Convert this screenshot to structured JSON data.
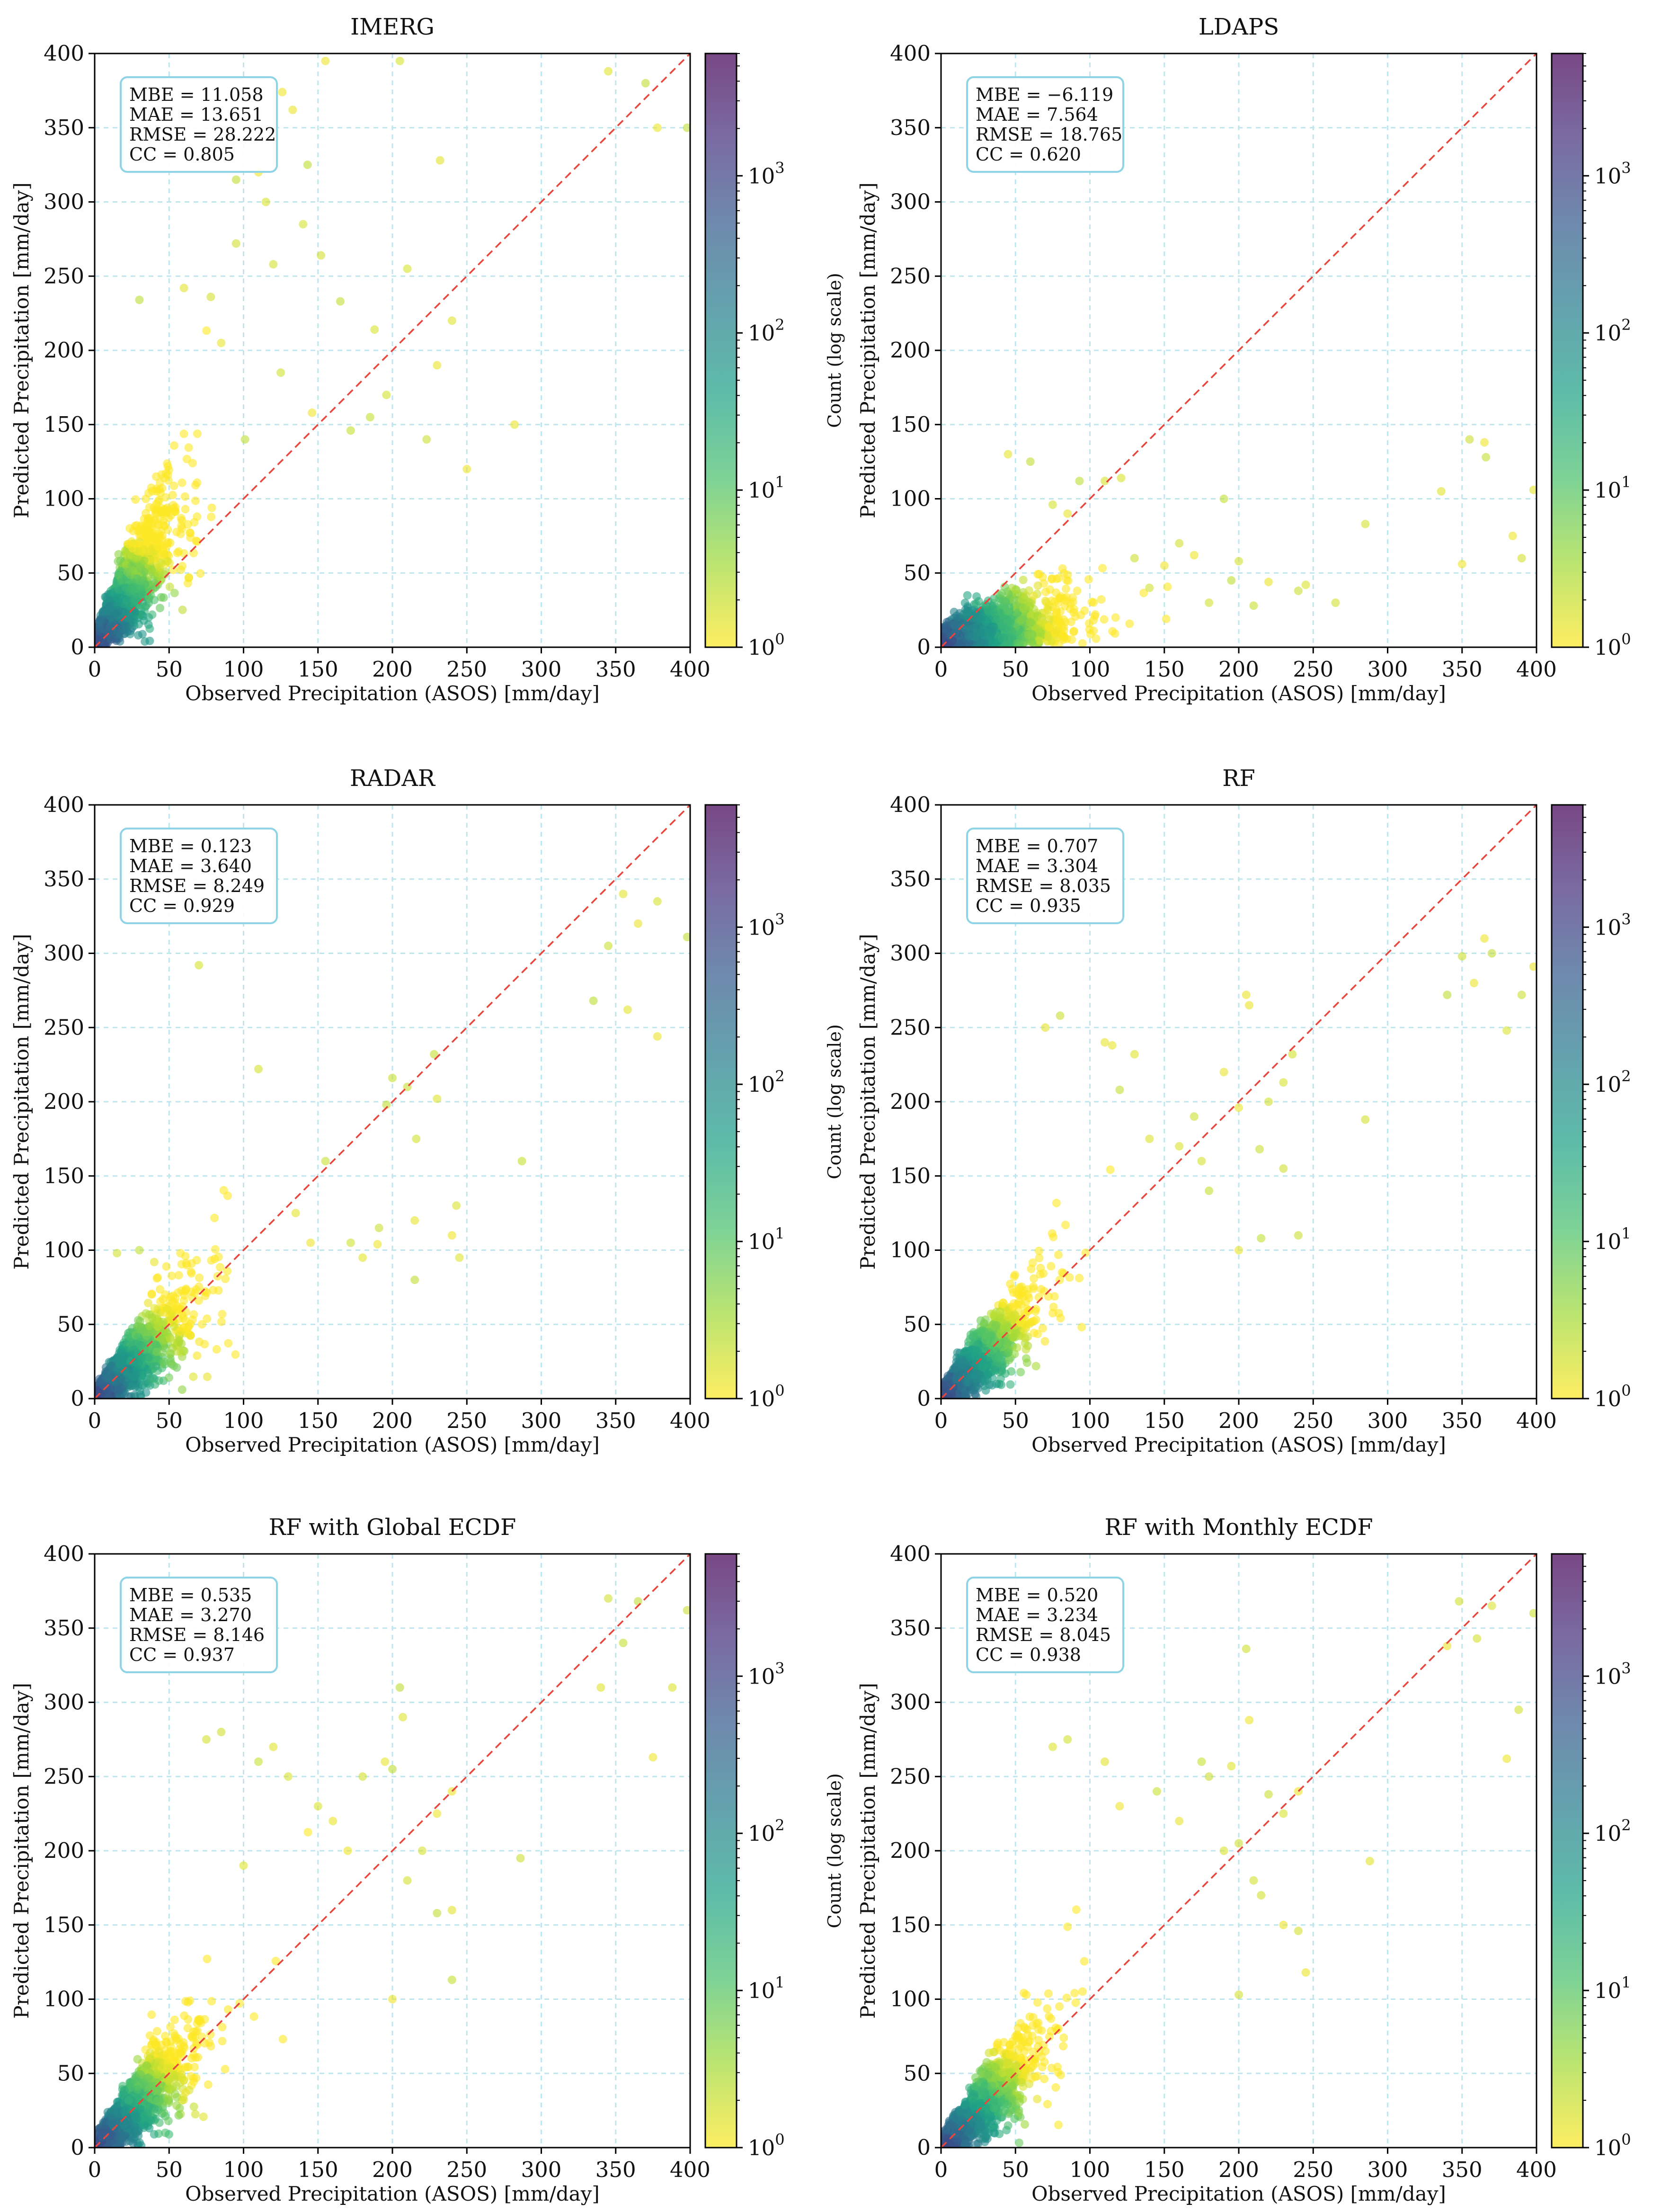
{
  "figure": {
    "x_axis_label": "Observed Precipitation (ASOS) [mm/day]",
    "y_axis_label": "Predicted Precipitation [mm/day]",
    "colorbar_label": "Count (log scale)",
    "colorbar_ticks": [
      "10",
      "10",
      "10",
      "10"
    ],
    "colorbar_tick_exponents": [
      "0",
      "1",
      "2",
      "3"
    ],
    "colorbar_tick_values": [
      1,
      10,
      100,
      1000
    ],
    "colorbar_range": [
      1,
      6000
    ],
    "colormap": [
      "#fde725",
      "#a0da39",
      "#4ac16d",
      "#1fa187",
      "#277f8e",
      "#365c8d",
      "#46327e",
      "#440154"
    ],
    "marker_alpha": 0.6,
    "reference_line_color": "#e8453c",
    "stats_box_border_color": "#8fd3e6",
    "grid_color": "#bfe6ef"
  },
  "chart_data": [
    {
      "type": "scatter",
      "title": "IMERG",
      "xlabel": "Observed Precipitation (ASOS) [mm/day]",
      "ylabel": "Predicted Precipitation [mm/day]",
      "xlim": [
        0,
        400
      ],
      "ylim": [
        0,
        400
      ],
      "xticks": [
        "0",
        "50",
        "100",
        "150",
        "200",
        "250",
        "300",
        "350",
        "400"
      ],
      "yticks": [
        "0",
        "50",
        "100",
        "150",
        "200",
        "250",
        "300",
        "350",
        "400"
      ],
      "reference_line": "y = x",
      "stats": [
        "MBE = 11.058",
        "MAE = 13.651",
        "RMSE = 28.222",
        "CC = 0.805"
      ],
      "cloud": {
        "n": 3000,
        "sx": 22,
        "sy": 34,
        "slope": 1.15,
        "offset": 4,
        "spread": 0.42
      },
      "outliers": [
        [
          110,
          320
        ],
        [
          155,
          395
        ],
        [
          205,
          395
        ],
        [
          232,
          328
        ],
        [
          282,
          150
        ],
        [
          345,
          388
        ],
        [
          370,
          380
        ],
        [
          378,
          350
        ],
        [
          398,
          350
        ],
        [
          120,
          258
        ],
        [
          152,
          264
        ],
        [
          188,
          214
        ],
        [
          210,
          255
        ],
        [
          230,
          190
        ],
        [
          240,
          220
        ],
        [
          196,
          170
        ],
        [
          172,
          146
        ],
        [
          126,
          374
        ],
        [
          133,
          362
        ],
        [
          95,
          315
        ],
        [
          165,
          233
        ],
        [
          115,
          300
        ],
        [
          78,
          236
        ],
        [
          60,
          242
        ],
        [
          30,
          234
        ],
        [
          85,
          205
        ],
        [
          223,
          140
        ],
        [
          101,
          140
        ],
        [
          146,
          158
        ],
        [
          185,
          155
        ],
        [
          250,
          120
        ],
        [
          143,
          325
        ],
        [
          125,
          185
        ],
        [
          140,
          285
        ],
        [
          95,
          272
        ]
      ]
    },
    {
      "type": "scatter",
      "title": "LDAPS",
      "xlabel": "Observed Precipitation (ASOS) [mm/day]",
      "ylabel": "Predicted Precipitation [mm/day]",
      "xlim": [
        0,
        400
      ],
      "ylim": [
        0,
        400
      ],
      "xticks": [
        "0",
        "50",
        "100",
        "150",
        "200",
        "250",
        "300",
        "350",
        "400"
      ],
      "yticks": [
        "0",
        "50",
        "100",
        "150",
        "200",
        "250",
        "300",
        "350",
        "400"
      ],
      "reference_line": "y = x",
      "stats": [
        "MBE = −6.119",
        "MAE = 7.564",
        "RMSE = 18.765",
        "CC = 0.620"
      ],
      "cloud": {
        "n": 2600,
        "sx": 36,
        "sy": 10,
        "slope": 0.25,
        "offset": 2,
        "spread": 0.6
      },
      "outliers": [
        [
          355,
          140
        ],
        [
          365,
          138
        ],
        [
          366,
          128
        ],
        [
          336,
          105
        ],
        [
          398,
          106
        ],
        [
          384,
          75
        ],
        [
          350,
          56
        ],
        [
          390,
          60
        ],
        [
          285,
          83
        ],
        [
          190,
          100
        ],
        [
          170,
          62
        ],
        [
          200,
          58
        ],
        [
          220,
          44
        ],
        [
          245,
          42
        ],
        [
          240,
          38
        ],
        [
          180,
          30
        ],
        [
          210,
          28
        ],
        [
          195,
          45
        ],
        [
          160,
          70
        ],
        [
          150,
          55
        ],
        [
          130,
          60
        ],
        [
          110,
          112
        ],
        [
          93,
          112
        ],
        [
          121,
          114
        ],
        [
          60,
          125
        ],
        [
          45,
          130
        ],
        [
          85,
          90
        ],
        [
          75,
          96
        ],
        [
          140,
          40
        ],
        [
          265,
          30
        ]
      ]
    },
    {
      "type": "scatter",
      "title": "RADAR",
      "xlabel": "Observed Precipitation (ASOS) [mm/day]",
      "ylabel": "Predicted Precipitation [mm/day]",
      "xlim": [
        0,
        400
      ],
      "ylim": [
        0,
        400
      ],
      "xticks": [
        "0",
        "50",
        "100",
        "150",
        "200",
        "250",
        "300",
        "350",
        "400"
      ],
      "yticks": [
        "0",
        "50",
        "100",
        "150",
        "200",
        "250",
        "300",
        "350",
        "400"
      ],
      "reference_line": "y = x",
      "stats": [
        "MBE = 0.123",
        "MAE = 3.640",
        "RMSE = 8.249",
        "CC = 0.929"
      ],
      "cloud": {
        "n": 2600,
        "sx": 26,
        "sy": 30,
        "slope": 0.95,
        "offset": 1,
        "spread": 0.28
      },
      "outliers": [
        [
          355,
          340
        ],
        [
          378,
          335
        ],
        [
          365,
          320
        ],
        [
          345,
          305
        ],
        [
          398,
          311
        ],
        [
          335,
          268
        ],
        [
          358,
          262
        ],
        [
          378,
          244
        ],
        [
          228,
          232
        ],
        [
          200,
          216
        ],
        [
          210,
          210
        ],
        [
          230,
          202
        ],
        [
          216,
          175
        ],
        [
          196,
          198
        ],
        [
          245,
          95
        ],
        [
          215,
          80
        ],
        [
          240,
          110
        ],
        [
          215,
          120
        ],
        [
          287,
          160
        ],
        [
          243,
          130
        ],
        [
          191,
          115
        ],
        [
          180,
          95
        ],
        [
          172,
          105
        ],
        [
          190,
          104
        ],
        [
          110,
          222
        ],
        [
          70,
          292
        ],
        [
          155,
          160
        ],
        [
          135,
          125
        ],
        [
          145,
          105
        ],
        [
          30,
          100
        ],
        [
          15,
          98
        ],
        [
          40,
          92
        ]
      ]
    },
    {
      "type": "scatter",
      "title": "RF",
      "xlabel": "Observed Precipitation (ASOS) [mm/day]",
      "ylabel": "Predicted Precipitation [mm/day]",
      "xlim": [
        0,
        400
      ],
      "ylim": [
        0,
        400
      ],
      "xticks": [
        "0",
        "50",
        "100",
        "150",
        "200",
        "250",
        "300",
        "350",
        "400"
      ],
      "yticks": [
        "0",
        "50",
        "100",
        "150",
        "200",
        "250",
        "300",
        "350",
        "400"
      ],
      "reference_line": "y = x",
      "stats": [
        "MBE = 0.707",
        "MAE = 3.304",
        "RMSE = 8.035",
        "CC = 0.935"
      ],
      "cloud": {
        "n": 2700,
        "sx": 26,
        "sy": 28,
        "slope": 1.0,
        "offset": 1,
        "spread": 0.26
      },
      "outliers": [
        [
          365,
          310
        ],
        [
          350,
          298
        ],
        [
          370,
          300
        ],
        [
          358,
          280
        ],
        [
          340,
          272
        ],
        [
          380,
          248
        ],
        [
          390,
          272
        ],
        [
          398,
          291
        ],
        [
          207,
          265
        ],
        [
          205,
          272
        ],
        [
          236,
          232
        ],
        [
          230,
          213
        ],
        [
          220,
          200
        ],
        [
          200,
          196
        ],
        [
          214,
          168
        ],
        [
          230,
          155
        ],
        [
          240,
          110
        ],
        [
          215,
          108
        ],
        [
          200,
          100
        ],
        [
          285,
          188
        ],
        [
          190,
          220
        ],
        [
          170,
          190
        ],
        [
          160,
          170
        ],
        [
          140,
          175
        ],
        [
          120,
          208
        ],
        [
          115,
          238
        ],
        [
          110,
          240
        ],
        [
          70,
          250
        ],
        [
          80,
          258
        ],
        [
          130,
          232
        ],
        [
          180,
          140
        ],
        [
          175,
          160
        ]
      ]
    },
    {
      "type": "scatter",
      "title": "RF with Global ECDF",
      "xlabel": "Observed Precipitation (ASOS) [mm/day]",
      "ylabel": "Predicted Precipitation [mm/day]",
      "xlim": [
        0,
        400
      ],
      "ylim": [
        0,
        400
      ],
      "xticks": [
        "0",
        "50",
        "100",
        "150",
        "200",
        "250",
        "300",
        "350",
        "400"
      ],
      "yticks": [
        "0",
        "50",
        "100",
        "150",
        "200",
        "250",
        "300",
        "350",
        "400"
      ],
      "reference_line": "y = x",
      "stats": [
        "MBE = 0.535",
        "MAE = 3.270",
        "RMSE = 8.146",
        "CC = 0.937"
      ],
      "cloud": {
        "n": 2700,
        "sx": 26,
        "sy": 28,
        "slope": 1.0,
        "offset": 1,
        "spread": 0.27
      },
      "outliers": [
        [
          345,
          370
        ],
        [
          365,
          368
        ],
        [
          398,
          362
        ],
        [
          355,
          340
        ],
        [
          340,
          310
        ],
        [
          388,
          310
        ],
        [
          375,
          263
        ],
        [
          205,
          310
        ],
        [
          207,
          290
        ],
        [
          195,
          260
        ],
        [
          200,
          255
        ],
        [
          180,
          250
        ],
        [
          230,
          225
        ],
        [
          240,
          240
        ],
        [
          220,
          200
        ],
        [
          210,
          180
        ],
        [
          240,
          160
        ],
        [
          230,
          158
        ],
        [
          200,
          100
        ],
        [
          240,
          113
        ],
        [
          286,
          195
        ],
        [
          120,
          270
        ],
        [
          85,
          280
        ],
        [
          75,
          275
        ],
        [
          110,
          260
        ],
        [
          130,
          250
        ],
        [
          150,
          230
        ],
        [
          160,
          220
        ],
        [
          170,
          200
        ],
        [
          100,
          190
        ]
      ]
    },
    {
      "type": "scatter",
      "title": "RF with Monthly ECDF",
      "xlabel": "Observed Precipitation (ASOS) [mm/day]",
      "ylabel": "Predicted Precipitation [mm/day]",
      "xlim": [
        0,
        400
      ],
      "ylim": [
        0,
        400
      ],
      "xticks": [
        "0",
        "50",
        "100",
        "150",
        "200",
        "250",
        "300",
        "350",
        "400"
      ],
      "yticks": [
        "0",
        "50",
        "100",
        "150",
        "200",
        "250",
        "300",
        "350",
        "400"
      ],
      "reference_line": "y = x",
      "stats": [
        "MBE = 0.520",
        "MAE = 3.234",
        "RMSE = 8.045",
        "CC = 0.938"
      ],
      "cloud": {
        "n": 2700,
        "sx": 26,
        "sy": 28,
        "slope": 1.0,
        "offset": 1,
        "spread": 0.26
      },
      "outliers": [
        [
          348,
          368
        ],
        [
          370,
          365
        ],
        [
          398,
          360
        ],
        [
          360,
          343
        ],
        [
          340,
          338
        ],
        [
          388,
          295
        ],
        [
          380,
          262
        ],
        [
          205,
          336
        ],
        [
          207,
          288
        ],
        [
          195,
          257
        ],
        [
          180,
          250
        ],
        [
          220,
          238
        ],
        [
          230,
          225
        ],
        [
          240,
          240
        ],
        [
          200,
          205
        ],
        [
          210,
          180
        ],
        [
          215,
          170
        ],
        [
          240,
          146
        ],
        [
          230,
          150
        ],
        [
          200,
          103
        ],
        [
          245,
          118
        ],
        [
          288,
          193
        ],
        [
          110,
          260
        ],
        [
          85,
          275
        ],
        [
          75,
          270
        ],
        [
          120,
          230
        ],
        [
          145,
          240
        ],
        [
          160,
          220
        ],
        [
          190,
          200
        ],
        [
          175,
          260
        ]
      ]
    }
  ]
}
